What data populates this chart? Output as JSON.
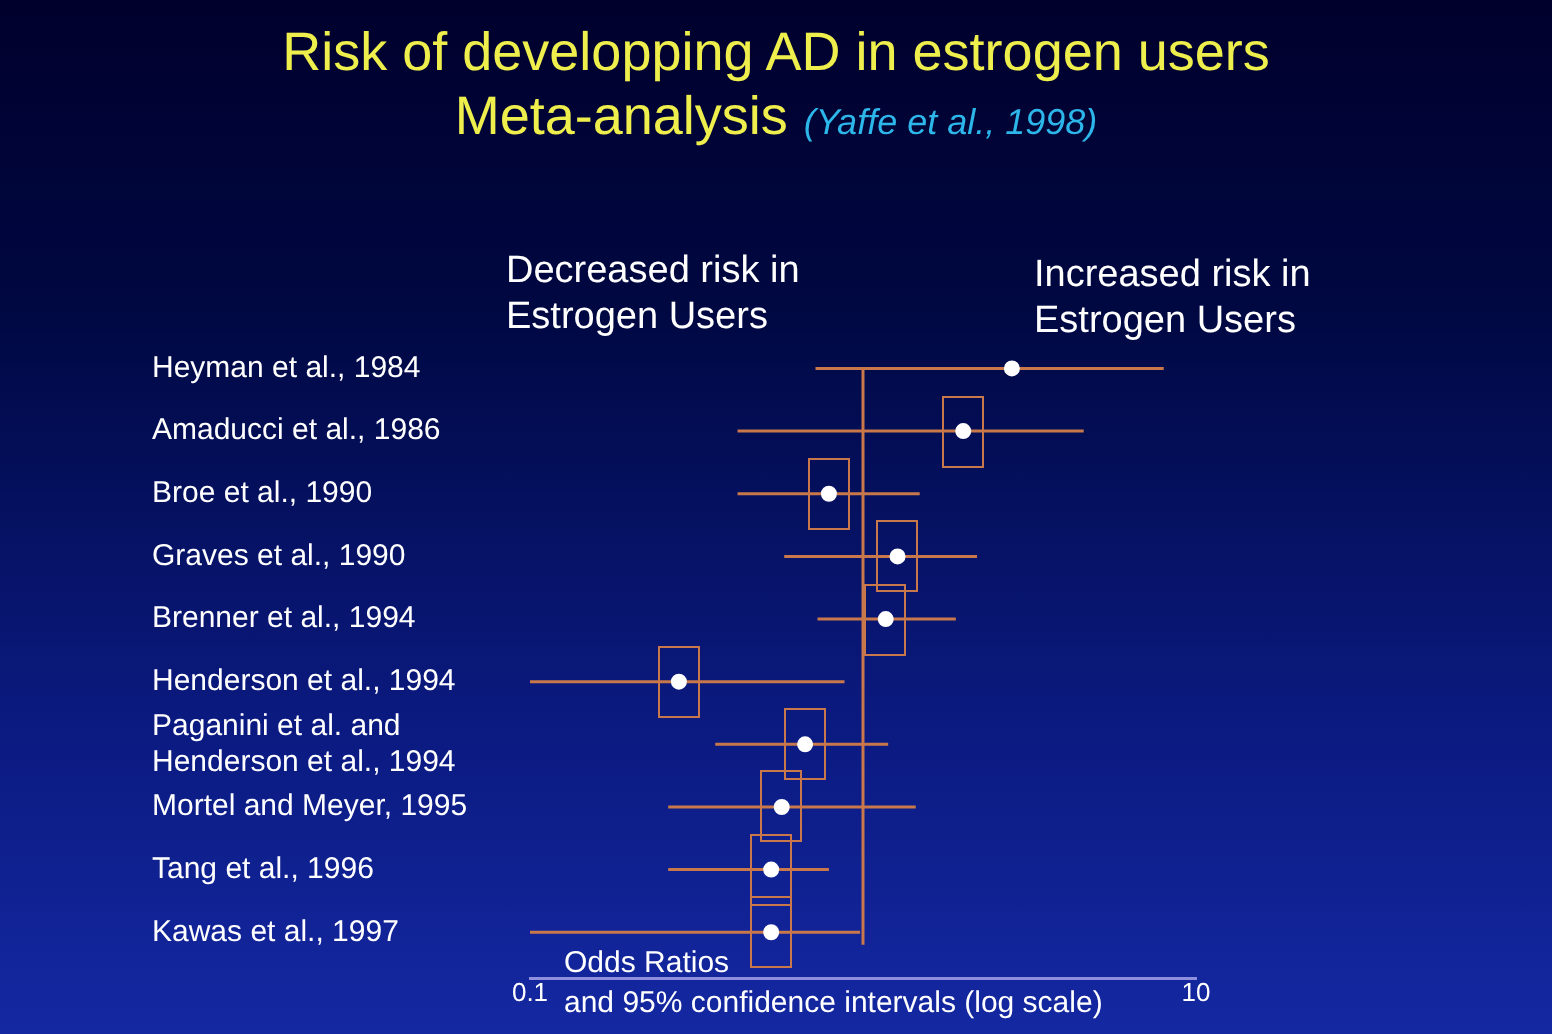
{
  "chart_data": {
    "type": "scatter",
    "title": "Risk of developping AD in estrogen users",
    "subtitle": "Meta-analysis",
    "xlabel": "Odds Ratios\nand 95% confidence intervals (log scale)",
    "annotations": [
      "(Yaffe et al., 1998)",
      "Decreased risk in\nEstrogen Users",
      "Increased risk in\nEstrogen Users"
    ],
    "categories": [
      "Heyman et al., 1984",
      "Amaducci et al., 1986",
      "Broe et al., 1990",
      "Graves et al., 1990",
      "Brenner et al., 1994",
      "Henderson et al., 1994",
      "Paganini et al. and\nHenderson et al., 1994",
      "Mortel and Meyer, 1995",
      "Tang et al., 1996",
      "Kawas et al., 1997"
    ],
    "values": [
      2.8,
      2.0,
      0.79,
      1.27,
      1.17,
      0.28,
      0.67,
      0.57,
      0.53,
      0.53
    ],
    "errors": [
      [
        0.72,
        8.0
      ],
      [
        0.42,
        4.6
      ],
      [
        0.42,
        1.48
      ],
      [
        0.58,
        2.2
      ],
      [
        0.73,
        1.9
      ],
      [
        0.1,
        0.88
      ],
      [
        0.36,
        1.19
      ],
      [
        0.26,
        1.44
      ],
      [
        0.26,
        0.79
      ],
      [
        0.1,
        0.98
      ]
    ],
    "color": "#ffffff",
    "orientation": "horizontal",
    "xlim": [
      0.1,
      10
    ],
    "xticks": [
      0.1,
      10
    ],
    "log": "x",
    "grid": false,
    "legend": false,
    "marker": "circle",
    "ref_lines": [
      {
        "axis": "x",
        "value": 1,
        "color": "#c8784a"
      }
    ]
  }
}
